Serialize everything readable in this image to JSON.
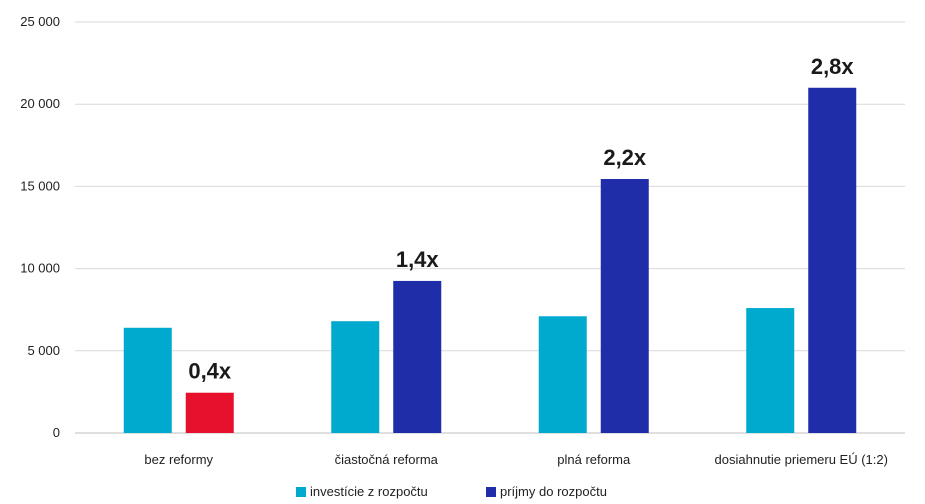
{
  "chart_data": {
    "type": "bar",
    "title": "",
    "xlabel": "",
    "ylabel": "",
    "ylim": [
      0,
      25000
    ],
    "y_ticks": [
      0,
      5000,
      10000,
      15000,
      20000,
      25000
    ],
    "y_tick_labels": [
      "0",
      "5 000",
      "10 000",
      "15 000",
      "20 000",
      "25 000"
    ],
    "grid": true,
    "legend_position": "bottom",
    "categories": [
      "bez reformy",
      "čiastočná reforma",
      "plná reforma",
      "dosiahnutie priemeru EÚ (1:2)"
    ],
    "series": [
      {
        "name": "investície z rozpočtu",
        "color": "#00A9CE",
        "values": [
          6400,
          6800,
          7100,
          7600
        ]
      },
      {
        "name": "príjmy do rozpočtu",
        "color": "#1F2DA8",
        "values": [
          2450,
          9250,
          15450,
          21000
        ],
        "point_colors": [
          "#E8112D",
          "#1F2DA8",
          "#1F2DA8",
          "#1F2DA8"
        ]
      }
    ],
    "annotations": [
      "0,4x",
      "1,4x",
      "2,2x",
      "2,8x"
    ]
  }
}
